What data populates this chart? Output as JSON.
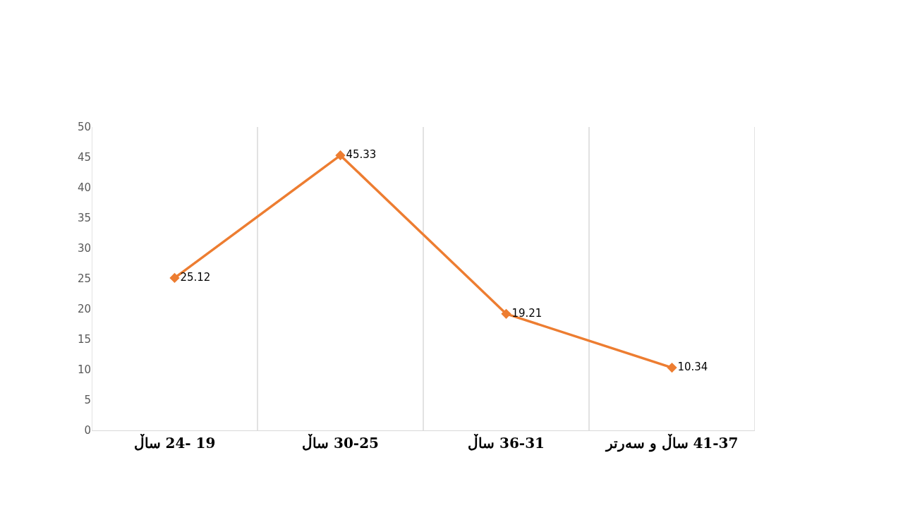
{
  "chart_data": {
    "type": "line",
    "categories": [
      "19 -24 ساڵ",
      "30-25 ساڵ",
      "36-31 ساڵ",
      "41-37 ساڵ و سەرتر"
    ],
    "series": [
      {
        "color": "#ed7d31",
        "values": [
          25.12,
          45.33,
          19.21,
          10.34
        ]
      }
    ],
    "ylim": [
      0,
      50
    ],
    "yticks": [
      0,
      5,
      10,
      15,
      20,
      25,
      30,
      35,
      40,
      45,
      50
    ],
    "grid": "x",
    "marker": "diamond",
    "line_style": "solid",
    "data_labels": true,
    "legend": false
  }
}
